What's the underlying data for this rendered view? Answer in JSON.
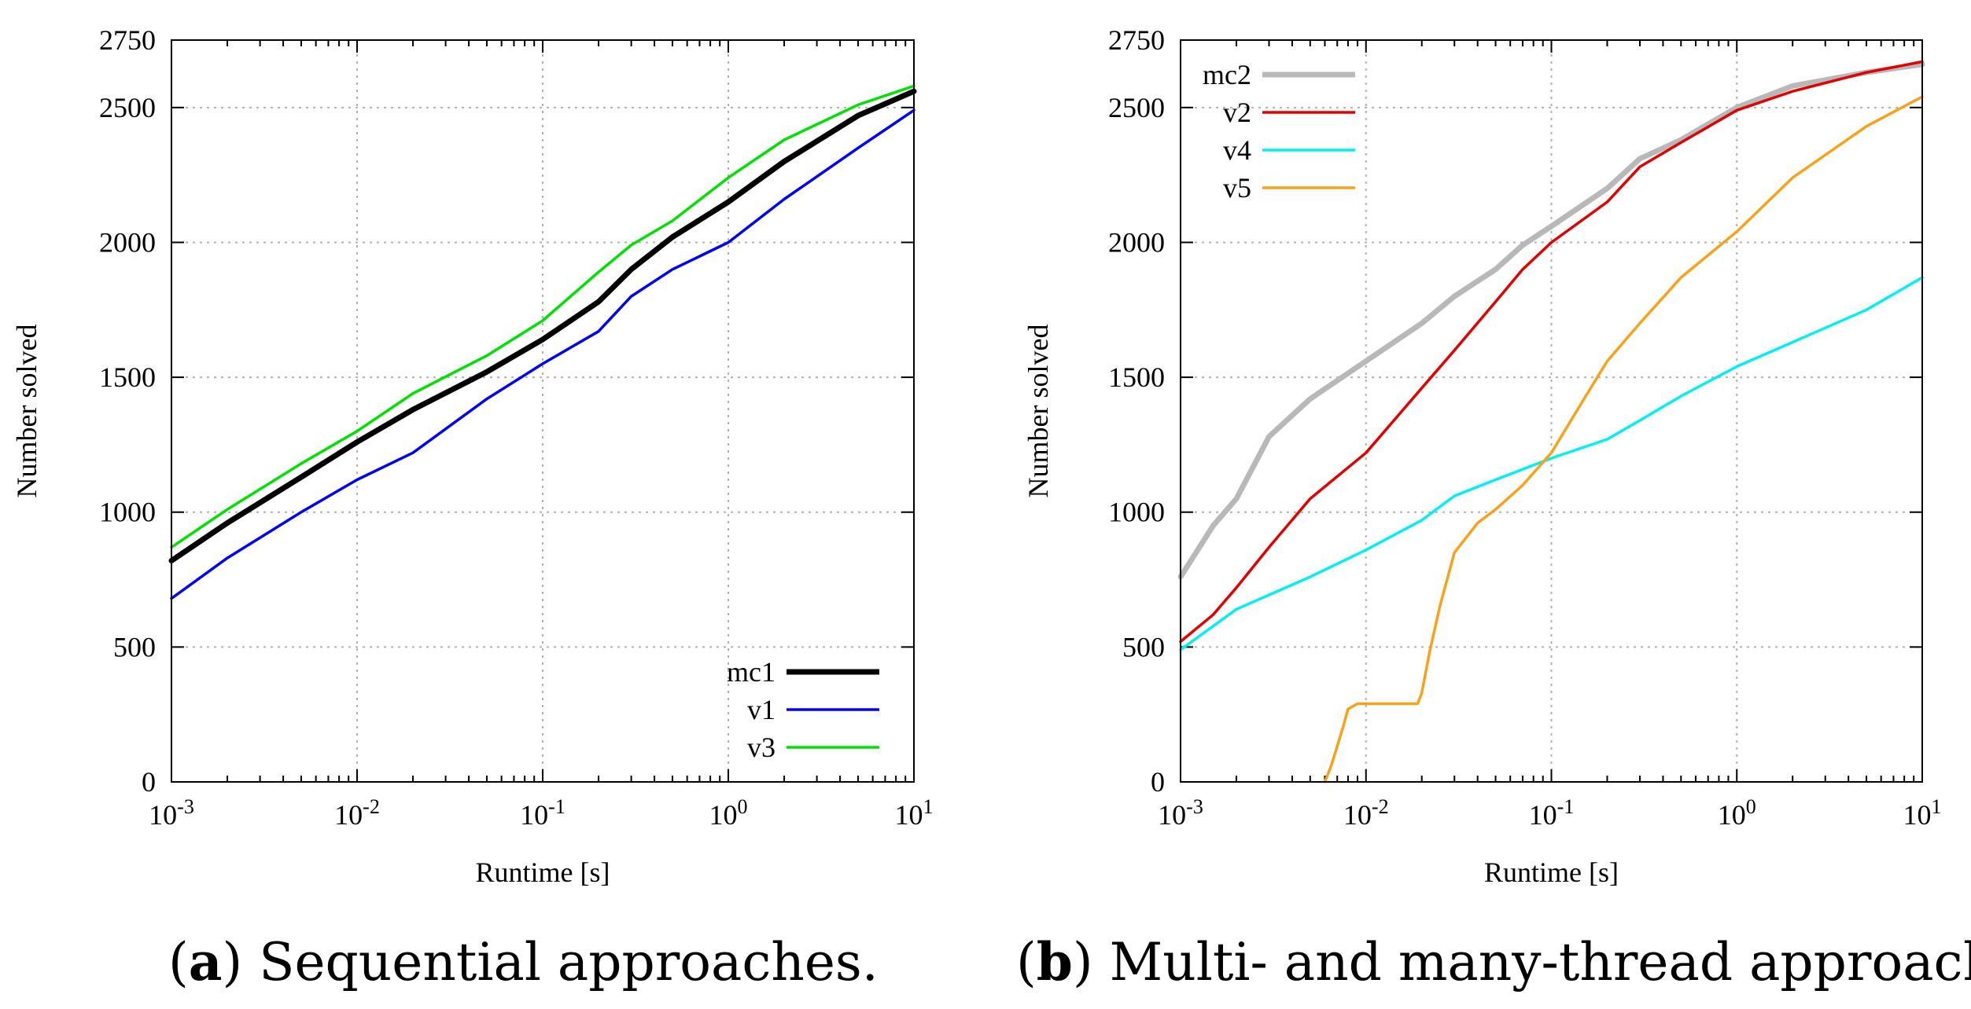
{
  "chart_data": [
    {
      "type": "line",
      "caption_letter": "a",
      "caption_text": "Sequential approaches.",
      "xlabel": "Runtime [s]",
      "ylabel": "Number solved",
      "xscale": "log",
      "xlim": [
        0.001,
        10
      ],
      "ylim": [
        0,
        2750
      ],
      "xticks": [
        {
          "v": 0.001,
          "base": "10",
          "exp": "-3"
        },
        {
          "v": 0.01,
          "base": "10",
          "exp": "-2"
        },
        {
          "v": 0.1,
          "base": "10",
          "exp": "-1"
        },
        {
          "v": 1,
          "base": "10",
          "exp": "0"
        },
        {
          "v": 10,
          "base": "10",
          "exp": "1"
        }
      ],
      "yticks": [
        0,
        500,
        1000,
        1500,
        2000,
        2500,
        2750
      ],
      "legend_position": "bottom-right",
      "series": [
        {
          "name": "mc1",
          "color": "#000000",
          "width": 7,
          "x": [
            0.001,
            0.002,
            0.005,
            0.01,
            0.02,
            0.05,
            0.1,
            0.2,
            0.3,
            0.5,
            1,
            2,
            5,
            10
          ],
          "y": [
            820,
            960,
            1130,
            1260,
            1380,
            1520,
            1640,
            1780,
            1900,
            2020,
            2150,
            2300,
            2470,
            2560
          ]
        },
        {
          "name": "v1",
          "color": "#0000ff",
          "width": 3.5,
          "x": [
            0.001,
            0.002,
            0.005,
            0.01,
            0.02,
            0.05,
            0.1,
            0.2,
            0.3,
            0.5,
            1,
            2,
            5,
            10
          ],
          "y": [
            680,
            830,
            1000,
            1120,
            1220,
            1420,
            1550,
            1670,
            1800,
            1900,
            2000,
            2160,
            2350,
            2490
          ]
        },
        {
          "name": "v3",
          "color": "#00e000",
          "width": 3.5,
          "x": [
            0.001,
            0.002,
            0.005,
            0.01,
            0.02,
            0.05,
            0.1,
            0.2,
            0.3,
            0.5,
            1,
            2,
            5,
            10
          ],
          "y": [
            870,
            1010,
            1180,
            1300,
            1440,
            1580,
            1710,
            1890,
            1990,
            2080,
            2240,
            2380,
            2510,
            2580
          ]
        }
      ]
    },
    {
      "type": "line",
      "caption_letter": "b",
      "caption_text": "Multi- and many-thread approaches.",
      "xlabel": "Runtime [s]",
      "ylabel": "Number solved",
      "xscale": "log",
      "xlim": [
        0.001,
        10
      ],
      "ylim": [
        0,
        2750
      ],
      "xticks": [
        {
          "v": 0.001,
          "base": "10",
          "exp": "-3"
        },
        {
          "v": 0.01,
          "base": "10",
          "exp": "-2"
        },
        {
          "v": 0.1,
          "base": "10",
          "exp": "-1"
        },
        {
          "v": 1,
          "base": "10",
          "exp": "0"
        },
        {
          "v": 10,
          "base": "10",
          "exp": "1"
        }
      ],
      "yticks": [
        0,
        500,
        1000,
        1500,
        2000,
        2500,
        2750
      ],
      "legend_position": "top-left",
      "series": [
        {
          "name": "mc2",
          "color": "#b8b8b8",
          "width": 7,
          "x": [
            0.001,
            0.0015,
            0.002,
            0.003,
            0.005,
            0.01,
            0.02,
            0.03,
            0.05,
            0.07,
            0.1,
            0.2,
            0.3,
            0.5,
            1,
            2,
            5,
            10
          ],
          "y": [
            760,
            950,
            1050,
            1280,
            1420,
            1560,
            1700,
            1800,
            1900,
            1990,
            2060,
            2200,
            2310,
            2380,
            2500,
            2580,
            2630,
            2660
          ]
        },
        {
          "name": "v2",
          "color": "#e00000",
          "width": 3.5,
          "x": [
            0.001,
            0.0015,
            0.002,
            0.003,
            0.005,
            0.01,
            0.02,
            0.03,
            0.05,
            0.07,
            0.1,
            0.2,
            0.3,
            0.5,
            1,
            2,
            5,
            10
          ],
          "y": [
            520,
            620,
            720,
            870,
            1050,
            1220,
            1460,
            1600,
            1780,
            1900,
            2000,
            2150,
            2280,
            2370,
            2490,
            2560,
            2630,
            2670
          ]
        },
        {
          "name": "v4",
          "color": "#00f0f0",
          "width": 3.5,
          "x": [
            0.001,
            0.002,
            0.005,
            0.01,
            0.02,
            0.03,
            0.05,
            0.1,
            0.2,
            0.3,
            0.5,
            1,
            2,
            5,
            10
          ],
          "y": [
            490,
            640,
            760,
            860,
            970,
            1060,
            1120,
            1200,
            1270,
            1340,
            1430,
            1540,
            1630,
            1750,
            1870
          ]
        },
        {
          "name": "v5",
          "color": "#f7a21b",
          "width": 3.5,
          "x": [
            0.006,
            0.0065,
            0.0075,
            0.008,
            0.009,
            0.012,
            0.016,
            0.019,
            0.02,
            0.022,
            0.025,
            0.03,
            0.04,
            0.05,
            0.07,
            0.1,
            0.15,
            0.2,
            0.3,
            0.5,
            1,
            2,
            5,
            10
          ],
          "y": [
            0,
            60,
            200,
            270,
            290,
            290,
            290,
            290,
            330,
            480,
            650,
            850,
            960,
            1010,
            1100,
            1220,
            1420,
            1560,
            1700,
            1870,
            2040,
            2240,
            2430,
            2540
          ]
        }
      ]
    }
  ]
}
